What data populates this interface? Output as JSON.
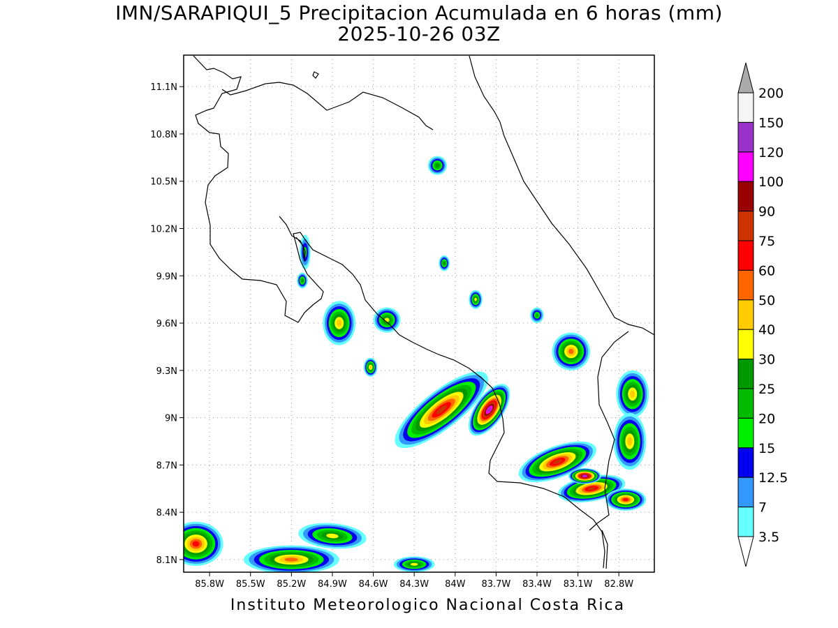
{
  "title": {
    "line1": "IMN/SARAPIQUI_5 Precipitacion Acumulada en 6 horas (mm)",
    "line2": "2025-10-26 03Z"
  },
  "footer": "Instituto Meteorologico Nacional Costa Rica",
  "lon_range": [
    -85.99,
    -82.54
  ],
  "lat_range": [
    8.02,
    11.3
  ],
  "lat_ticks": [
    {
      "value": 11.1,
      "label": "11.1N"
    },
    {
      "value": 10.8,
      "label": "10.8N"
    },
    {
      "value": 10.5,
      "label": "10.5N"
    },
    {
      "value": 10.2,
      "label": "10.2N"
    },
    {
      "value": 9.9,
      "label": "9.9N"
    },
    {
      "value": 9.6,
      "label": "9.6N"
    },
    {
      "value": 9.3,
      "label": "9.3N"
    },
    {
      "value": 9.0,
      "label": "9N"
    },
    {
      "value": 8.7,
      "label": "8.7N"
    },
    {
      "value": 8.4,
      "label": "8.4N"
    },
    {
      "value": 8.1,
      "label": "8.1N"
    }
  ],
  "lon_ticks": [
    {
      "value": -85.8,
      "label": "85.8W"
    },
    {
      "value": -85.5,
      "label": "85.5W"
    },
    {
      "value": -85.2,
      "label": "85.2W"
    },
    {
      "value": -84.9,
      "label": "84.9W"
    },
    {
      "value": -84.6,
      "label": "84.6W"
    },
    {
      "value": -84.3,
      "label": "84.3W"
    },
    {
      "value": -84.0,
      "label": "84W"
    },
    {
      "value": -83.7,
      "label": "83.7W"
    },
    {
      "value": -83.4,
      "label": "83.4W"
    },
    {
      "value": -83.1,
      "label": "83.1W"
    },
    {
      "value": -82.8,
      "label": "82.8W"
    }
  ],
  "colorbar": {
    "levels": [
      "3.5",
      "7",
      "12.5",
      "15",
      "20",
      "25",
      "30",
      "40",
      "50",
      "60",
      "75",
      "90",
      "100",
      "120",
      "150",
      "200"
    ],
    "colors": [
      "#66ffff",
      "#3399ff",
      "#0000ee",
      "#00ee00",
      "#00bb00",
      "#009900",
      "#ffff00",
      "#ffcc00",
      "#ff6600",
      "#ff0000",
      "#cc3300",
      "#990000",
      "#ff00ff",
      "#9933cc",
      "#f5f5f5"
    ],
    "over_color": "#aaaaaa",
    "under_color": "#ffffff"
  },
  "rain_cells": [
    {
      "lon": -84.1,
      "lat": 9.05,
      "rx": 0.42,
      "ry": 0.12,
      "rot": 38,
      "level": 10
    },
    {
      "lon": -83.75,
      "lat": 9.05,
      "rx": 0.22,
      "ry": 0.09,
      "rot": 55,
      "level": 13
    },
    {
      "lon": -83.25,
      "lat": 8.72,
      "rx": 0.3,
      "ry": 0.1,
      "rot": 20,
      "level": 10
    },
    {
      "lon": -83.0,
      "lat": 8.55,
      "rx": 0.25,
      "ry": 0.08,
      "rot": 10,
      "level": 10
    },
    {
      "lon": -83.05,
      "lat": 8.63,
      "rx": 0.12,
      "ry": 0.05,
      "rot": 0,
      "level": 13
    },
    {
      "lon": -82.75,
      "lat": 8.48,
      "rx": 0.15,
      "ry": 0.07,
      "rot": 0,
      "level": 9
    },
    {
      "lon": -84.85,
      "lat": 9.6,
      "rx": 0.12,
      "ry": 0.14,
      "rot": 0,
      "level": 7
    },
    {
      "lon": -84.5,
      "lat": 9.62,
      "rx": 0.1,
      "ry": 0.08,
      "rot": 0,
      "level": 6
    },
    {
      "lon": -83.15,
      "lat": 9.42,
      "rx": 0.14,
      "ry": 0.12,
      "rot": 0,
      "level": 8
    },
    {
      "lon": -82.7,
      "lat": 9.15,
      "rx": 0.12,
      "ry": 0.15,
      "rot": 0,
      "level": 7
    },
    {
      "lon": -82.72,
      "lat": 8.85,
      "rx": 0.12,
      "ry": 0.18,
      "rot": 0,
      "level": 7
    },
    {
      "lon": -85.9,
      "lat": 8.2,
      "rx": 0.2,
      "ry": 0.14,
      "rot": 0,
      "level": 9
    },
    {
      "lon": -85.2,
      "lat": 8.1,
      "rx": 0.35,
      "ry": 0.09,
      "rot": 0,
      "level": 8
    },
    {
      "lon": -84.9,
      "lat": 8.25,
      "rx": 0.25,
      "ry": 0.08,
      "rot": -5,
      "level": 6
    },
    {
      "lon": -84.3,
      "lat": 8.07,
      "rx": 0.15,
      "ry": 0.05,
      "rot": 0,
      "level": 6
    },
    {
      "lon": -84.13,
      "lat": 10.6,
      "rx": 0.07,
      "ry": 0.06,
      "rot": 0,
      "level": 5
    },
    {
      "lon": -84.08,
      "lat": 9.98,
      "rx": 0.04,
      "ry": 0.05,
      "rot": 0,
      "level": 5
    },
    {
      "lon": -85.1,
      "lat": 10.05,
      "rx": 0.04,
      "ry": 0.11,
      "rot": 0,
      "level": 3
    },
    {
      "lon": -85.12,
      "lat": 9.87,
      "rx": 0.04,
      "ry": 0.05,
      "rot": 0,
      "level": 5
    },
    {
      "lon": -83.85,
      "lat": 9.75,
      "rx": 0.05,
      "ry": 0.06,
      "rot": 0,
      "level": 6
    },
    {
      "lon": -83.4,
      "lat": 9.65,
      "rx": 0.05,
      "ry": 0.05,
      "rot": 0,
      "level": 4
    },
    {
      "lon": -84.62,
      "lat": 9.32,
      "rx": 0.05,
      "ry": 0.06,
      "rot": 0,
      "level": 7
    }
  ]
}
